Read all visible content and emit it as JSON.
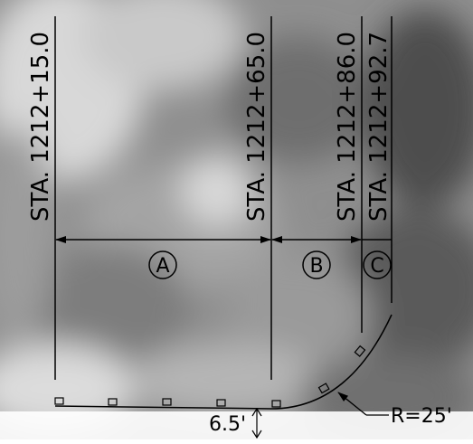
{
  "stations": [
    {
      "id": "sta-1",
      "label": "STA. 1212+15.0"
    },
    {
      "id": "sta-2",
      "label": "STA. 1212+65.0"
    },
    {
      "id": "sta-3",
      "label": "STA. 1212+86.0"
    },
    {
      "id": "sta-4",
      "label": "STA. 1212+92.7"
    }
  ],
  "segments": [
    {
      "id": "seg-a",
      "label": "A"
    },
    {
      "id": "seg-b",
      "label": "B"
    },
    {
      "id": "seg-c",
      "label": "C"
    }
  ],
  "offset_dimension": {
    "label": "6.5'"
  },
  "curve_radius": {
    "label": "R=25'"
  },
  "colors": {
    "line": "#000000",
    "background": "aerial-photo-gray"
  }
}
